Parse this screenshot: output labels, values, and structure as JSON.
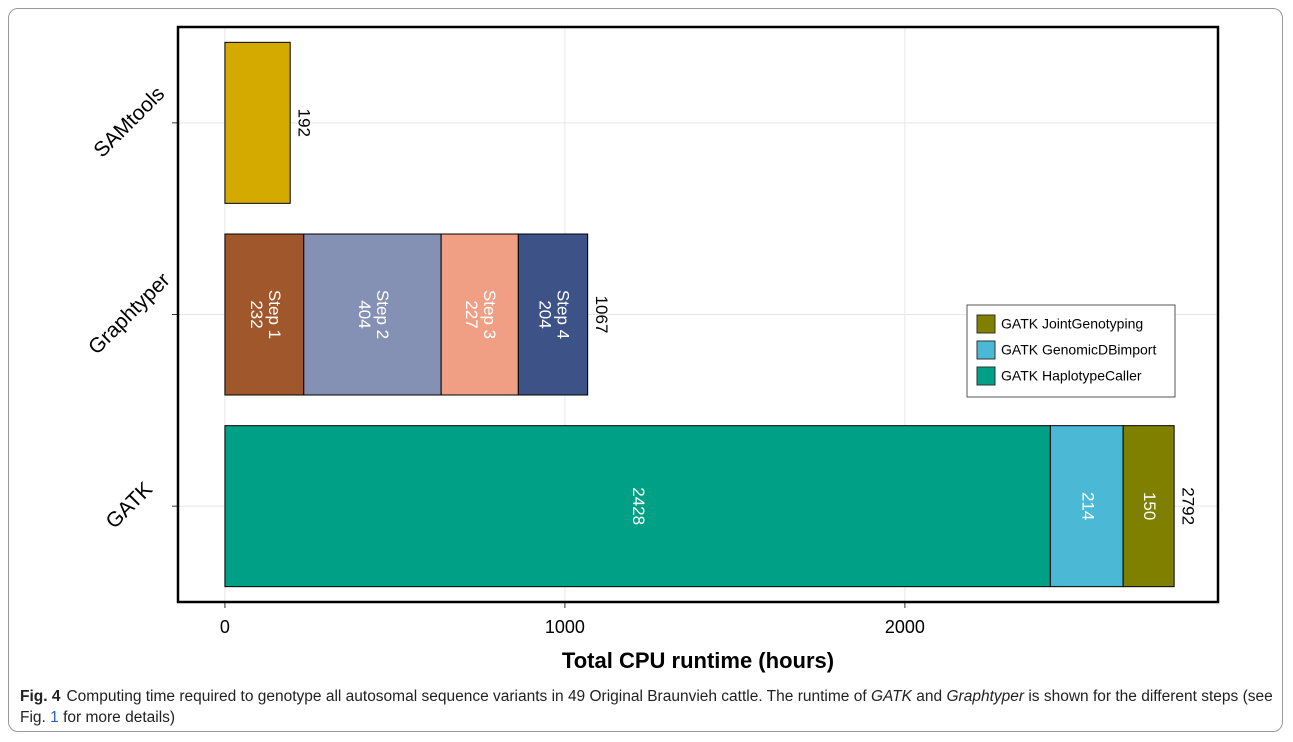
{
  "chart_data": {
    "type": "stacked-bar",
    "orientation": "horizontal",
    "x_label": "Total CPU runtime (hours)",
    "categories": [
      "SAMtools",
      "Graphtyper",
      "GATK"
    ],
    "bars": [
      {
        "segments": [
          {
            "value": 192,
            "color": "#d4a900"
          }
        ],
        "total": 192
      },
      {
        "segments": [
          {
            "label": "Step 1",
            "value": 232,
            "color": "#a0572c"
          },
          {
            "label": "Step 2",
            "value": 404,
            "color": "#8591b4"
          },
          {
            "label": "Step 3",
            "value": 227,
            "color": "#f09f84"
          },
          {
            "label": "Step 4",
            "value": 204,
            "color": "#3d5387"
          }
        ],
        "total": 1067
      },
      {
        "segments": [
          {
            "value": 2428,
            "color": "#00a086"
          },
          {
            "value": 214,
            "color": "#4bb9d5"
          },
          {
            "value": 150,
            "color": "#7f7f00"
          }
        ],
        "total": 2792
      }
    ],
    "xlim": [
      -138,
      2921
    ],
    "xticks": [
      0,
      1000,
      2000
    ],
    "grid": true,
    "legend": {
      "position": "right",
      "entries": [
        {
          "name": "GATK JointGenotyping",
          "color": "#7f7f00"
        },
        {
          "name": "GATK GenomicDBimport",
          "color": "#4bb9d5"
        },
        {
          "name": "GATK HaplotypeCaller",
          "color": "#00a086"
        }
      ]
    }
  },
  "caption": {
    "label": "Fig. 4",
    "parts": [
      "Computing time required to genotype all autosomal sequence variants in 49 Original Braunvieh cattle. The runtime of ",
      "GATK",
      " and ",
      "Graphtyper",
      " is shown for the different steps (see Fig. ",
      "1",
      " for more details)"
    ]
  }
}
